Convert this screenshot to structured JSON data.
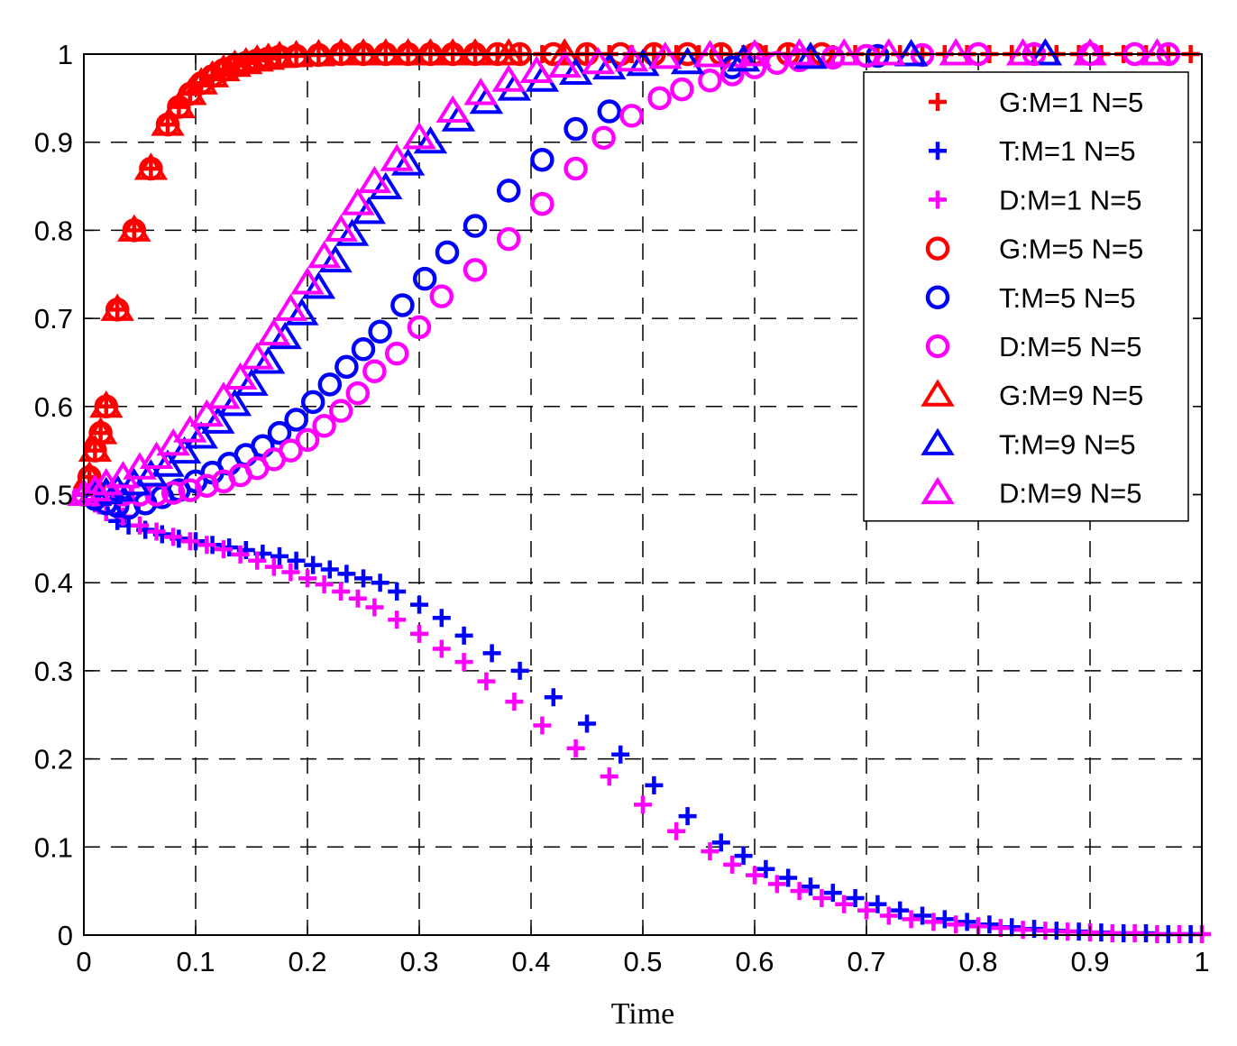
{
  "chart_data": {
    "type": "scatter",
    "title": "",
    "xlabel": "Time",
    "ylabel": "",
    "xlim": [
      0,
      1
    ],
    "ylim": [
      0,
      1
    ],
    "grid": true,
    "legend_position": "top-right",
    "xticks": [
      "0",
      "0.1",
      "0.2",
      "0.3",
      "0.4",
      "0.5",
      "0.6",
      "0.7",
      "0.8",
      "0.9",
      "1"
    ],
    "yticks": [
      "0",
      "0.1",
      "0.2",
      "0.3",
      "0.4",
      "0.5",
      "0.6",
      "0.7",
      "0.8",
      "0.9",
      "1"
    ],
    "series": [
      {
        "name": "G:M=1 N=5",
        "marker": "plus",
        "color": "#ff0000",
        "x": [
          0,
          0.005,
          0.01,
          0.015,
          0.02,
          0.03,
          0.045,
          0.06,
          0.075,
          0.085,
          0.095,
          0.105,
          0.115,
          0.125,
          0.135,
          0.145,
          0.155,
          0.165,
          0.175,
          0.19,
          0.21,
          0.23,
          0.25,
          0.27,
          0.29,
          0.31,
          0.33,
          0.35,
          0.37,
          0.39,
          0.41,
          0.43,
          0.45,
          0.47,
          0.49,
          0.51,
          0.53,
          0.55,
          0.57,
          0.59,
          0.61,
          0.63,
          0.65,
          0.67,
          0.69,
          0.71,
          0.73,
          0.75,
          0.77,
          0.79,
          0.81,
          0.83,
          0.85,
          0.87,
          0.89,
          0.91,
          0.93,
          0.95,
          0.97,
          0.99
        ],
        "y": [
          0.5,
          0.52,
          0.55,
          0.57,
          0.6,
          0.71,
          0.8,
          0.87,
          0.92,
          0.94,
          0.955,
          0.967,
          0.975,
          0.982,
          0.987,
          0.99,
          0.993,
          0.995,
          0.997,
          0.998,
          0.999,
          1,
          1,
          1,
          1,
          1,
          1,
          1,
          1,
          1,
          1,
          1,
          1,
          1,
          1,
          1,
          1,
          1,
          1,
          1,
          1,
          1,
          1,
          1,
          1,
          1,
          1,
          1,
          1,
          1,
          1,
          1,
          1,
          1,
          1,
          1,
          1,
          1,
          1,
          1
        ]
      },
      {
        "name": "T:M=1 N=5",
        "marker": "plus",
        "color": "#0000ff",
        "x": [
          0,
          0.01,
          0.02,
          0.03,
          0.04,
          0.055,
          0.07,
          0.085,
          0.1,
          0.115,
          0.13,
          0.145,
          0.16,
          0.175,
          0.19,
          0.205,
          0.22,
          0.235,
          0.25,
          0.265,
          0.28,
          0.3,
          0.32,
          0.34,
          0.365,
          0.39,
          0.42,
          0.45,
          0.48,
          0.51,
          0.54,
          0.57,
          0.59,
          0.61,
          0.63,
          0.65,
          0.67,
          0.69,
          0.71,
          0.73,
          0.75,
          0.77,
          0.79,
          0.81,
          0.83,
          0.85,
          0.87,
          0.89,
          0.91,
          0.93,
          0.95,
          0.97,
          0.99
        ],
        "y": [
          0.5,
          0.49,
          0.48,
          0.47,
          0.465,
          0.46,
          0.455,
          0.45,
          0.447,
          0.443,
          0.44,
          0.437,
          0.433,
          0.43,
          0.425,
          0.42,
          0.415,
          0.41,
          0.405,
          0.4,
          0.39,
          0.375,
          0.36,
          0.34,
          0.32,
          0.3,
          0.27,
          0.24,
          0.205,
          0.17,
          0.135,
          0.105,
          0.09,
          0.075,
          0.065,
          0.055,
          0.048,
          0.042,
          0.035,
          0.028,
          0.022,
          0.018,
          0.015,
          0.012,
          0.009,
          0.007,
          0.005,
          0.004,
          0.003,
          0.002,
          0.002,
          0.001,
          0.001
        ]
      },
      {
        "name": "D:M=1 N=5",
        "marker": "plus",
        "color": "#ff00ff",
        "x": [
          0,
          0.01,
          0.02,
          0.035,
          0.05,
          0.065,
          0.08,
          0.095,
          0.11,
          0.125,
          0.14,
          0.155,
          0.17,
          0.185,
          0.2,
          0.215,
          0.23,
          0.245,
          0.26,
          0.28,
          0.3,
          0.32,
          0.34,
          0.36,
          0.385,
          0.41,
          0.44,
          0.47,
          0.5,
          0.53,
          0.56,
          0.58,
          0.6,
          0.62,
          0.64,
          0.66,
          0.68,
          0.7,
          0.72,
          0.74,
          0.76,
          0.78,
          0.8,
          0.82,
          0.84,
          0.86,
          0.88,
          0.9,
          0.92,
          0.94,
          0.96,
          0.98,
          1.0
        ],
        "y": [
          0.5,
          0.49,
          0.48,
          0.475,
          0.465,
          0.458,
          0.452,
          0.447,
          0.443,
          0.438,
          0.432,
          0.425,
          0.418,
          0.412,
          0.405,
          0.398,
          0.39,
          0.382,
          0.372,
          0.358,
          0.342,
          0.325,
          0.31,
          0.288,
          0.265,
          0.238,
          0.212,
          0.18,
          0.148,
          0.118,
          0.095,
          0.08,
          0.068,
          0.058,
          0.05,
          0.042,
          0.035,
          0.028,
          0.022,
          0.018,
          0.015,
          0.012,
          0.01,
          0.008,
          0.006,
          0.005,
          0.004,
          0.003,
          0.002,
          0.002,
          0.001,
          0.001,
          0.001
        ]
      },
      {
        "name": "G:M=5 N=5",
        "marker": "circle",
        "color": "#ff0000",
        "x": [
          0,
          0.005,
          0.01,
          0.015,
          0.02,
          0.03,
          0.045,
          0.06,
          0.075,
          0.085,
          0.095,
          0.105,
          0.115,
          0.125,
          0.135,
          0.145,
          0.155,
          0.165,
          0.175,
          0.19,
          0.21,
          0.23,
          0.25,
          0.27,
          0.29,
          0.31,
          0.33,
          0.35,
          0.37,
          0.39,
          0.42,
          0.45,
          0.48,
          0.51,
          0.54,
          0.57,
          0.6,
          0.63,
          0.66
        ],
        "y": [
          0.5,
          0.52,
          0.55,
          0.57,
          0.6,
          0.71,
          0.8,
          0.87,
          0.92,
          0.94,
          0.955,
          0.967,
          0.975,
          0.982,
          0.987,
          0.99,
          0.993,
          0.995,
          0.997,
          0.998,
          0.999,
          1,
          1,
          1,
          1,
          1,
          1,
          1,
          1,
          1,
          1,
          1,
          1,
          1,
          1,
          1,
          1,
          1,
          1
        ]
      },
      {
        "name": "T:M=5 N=5",
        "marker": "circle",
        "color": "#0000ff",
        "x": [
          0,
          0.01,
          0.02,
          0.03,
          0.04,
          0.055,
          0.07,
          0.085,
          0.1,
          0.115,
          0.13,
          0.145,
          0.16,
          0.175,
          0.19,
          0.205,
          0.22,
          0.235,
          0.25,
          0.265,
          0.285,
          0.305,
          0.325,
          0.35,
          0.38,
          0.41,
          0.44,
          0.47,
          0.58,
          0.71
        ],
        "y": [
          0.5,
          0.495,
          0.49,
          0.487,
          0.485,
          0.49,
          0.497,
          0.505,
          0.515,
          0.525,
          0.535,
          0.545,
          0.555,
          0.57,
          0.585,
          0.605,
          0.625,
          0.645,
          0.665,
          0.685,
          0.715,
          0.745,
          0.775,
          0.805,
          0.845,
          0.88,
          0.915,
          0.935,
          0.985,
          0.998
        ]
      },
      {
        "name": "D:M=5 N=5",
        "marker": "circle",
        "color": "#ff00ff",
        "x": [
          0,
          0.01,
          0.02,
          0.035,
          0.05,
          0.065,
          0.08,
          0.095,
          0.11,
          0.125,
          0.14,
          0.155,
          0.17,
          0.185,
          0.2,
          0.215,
          0.23,
          0.245,
          0.26,
          0.28,
          0.3,
          0.32,
          0.35,
          0.38,
          0.41,
          0.44,
          0.465,
          0.49,
          0.515,
          0.535,
          0.56,
          0.58,
          0.6,
          0.62,
          0.64,
          0.67,
          0.7,
          0.75,
          0.8,
          0.85,
          0.9,
          0.94,
          0.97
        ],
        "y": [
          0.5,
          0.5,
          0.5,
          0.5,
          0.5,
          0.5,
          0.502,
          0.505,
          0.51,
          0.515,
          0.522,
          0.53,
          0.54,
          0.55,
          0.562,
          0.578,
          0.595,
          0.615,
          0.64,
          0.66,
          0.69,
          0.725,
          0.755,
          0.79,
          0.83,
          0.87,
          0.905,
          0.93,
          0.95,
          0.96,
          0.97,
          0.977,
          0.985,
          0.99,
          0.993,
          0.996,
          0.998,
          0.999,
          1,
          1,
          1,
          1,
          1
        ]
      },
      {
        "name": "G:M=9 N=5",
        "marker": "triangle",
        "color": "#ff0000",
        "x": [
          0,
          0.005,
          0.01,
          0.015,
          0.02,
          0.03,
          0.045,
          0.06,
          0.075,
          0.085,
          0.095,
          0.105,
          0.115,
          0.125,
          0.135,
          0.145,
          0.155,
          0.165,
          0.175,
          0.19,
          0.21,
          0.23,
          0.25,
          0.27,
          0.29,
          0.31,
          0.33,
          0.35,
          0.38,
          0.43
        ],
        "y": [
          0.5,
          0.52,
          0.55,
          0.57,
          0.6,
          0.71,
          0.8,
          0.87,
          0.92,
          0.94,
          0.955,
          0.967,
          0.975,
          0.982,
          0.987,
          0.99,
          0.993,
          0.995,
          0.997,
          0.998,
          0.999,
          1,
          1,
          1,
          1,
          1,
          1,
          1,
          1,
          1
        ]
      },
      {
        "name": "T:M=9 N=5",
        "marker": "triangle",
        "color": "#0000ff",
        "x": [
          0,
          0.01,
          0.02,
          0.03,
          0.045,
          0.06,
          0.075,
          0.09,
          0.105,
          0.12,
          0.135,
          0.15,
          0.165,
          0.18,
          0.195,
          0.21,
          0.225,
          0.24,
          0.255,
          0.27,
          0.29,
          0.31,
          0.335,
          0.36,
          0.385,
          0.41,
          0.44,
          0.47,
          0.5,
          0.54,
          0.59,
          0.65,
          0.74,
          0.86
        ],
        "y": [
          0.5,
          0.5,
          0.502,
          0.505,
          0.512,
          0.522,
          0.533,
          0.548,
          0.565,
          0.582,
          0.602,
          0.625,
          0.65,
          0.678,
          0.705,
          0.735,
          0.765,
          0.795,
          0.82,
          0.848,
          0.875,
          0.9,
          0.925,
          0.945,
          0.96,
          0.97,
          0.978,
          0.984,
          0.988,
          0.99,
          0.993,
          0.996,
          0.999,
          1
        ]
      },
      {
        "name": "D:M=9 N=5",
        "marker": "triangle",
        "color": "#ff00ff",
        "x": [
          0,
          0.01,
          0.02,
          0.035,
          0.05,
          0.065,
          0.08,
          0.095,
          0.11,
          0.125,
          0.14,
          0.155,
          0.17,
          0.185,
          0.2,
          0.215,
          0.23,
          0.245,
          0.26,
          0.28,
          0.3,
          0.33,
          0.355,
          0.38,
          0.405,
          0.43,
          0.46,
          0.49,
          0.52,
          0.56,
          0.6,
          0.64,
          0.68,
          0.72,
          0.78,
          0.84,
          0.9,
          0.96
        ],
        "y": [
          0.5,
          0.505,
          0.512,
          0.52,
          0.53,
          0.542,
          0.557,
          0.572,
          0.59,
          0.61,
          0.632,
          0.655,
          0.682,
          0.71,
          0.74,
          0.77,
          0.8,
          0.83,
          0.855,
          0.88,
          0.905,
          0.935,
          0.955,
          0.97,
          0.98,
          0.986,
          0.99,
          0.993,
          0.996,
          0.998,
          0.999,
          1,
          1,
          1,
          1,
          1,
          1,
          1
        ]
      }
    ]
  }
}
